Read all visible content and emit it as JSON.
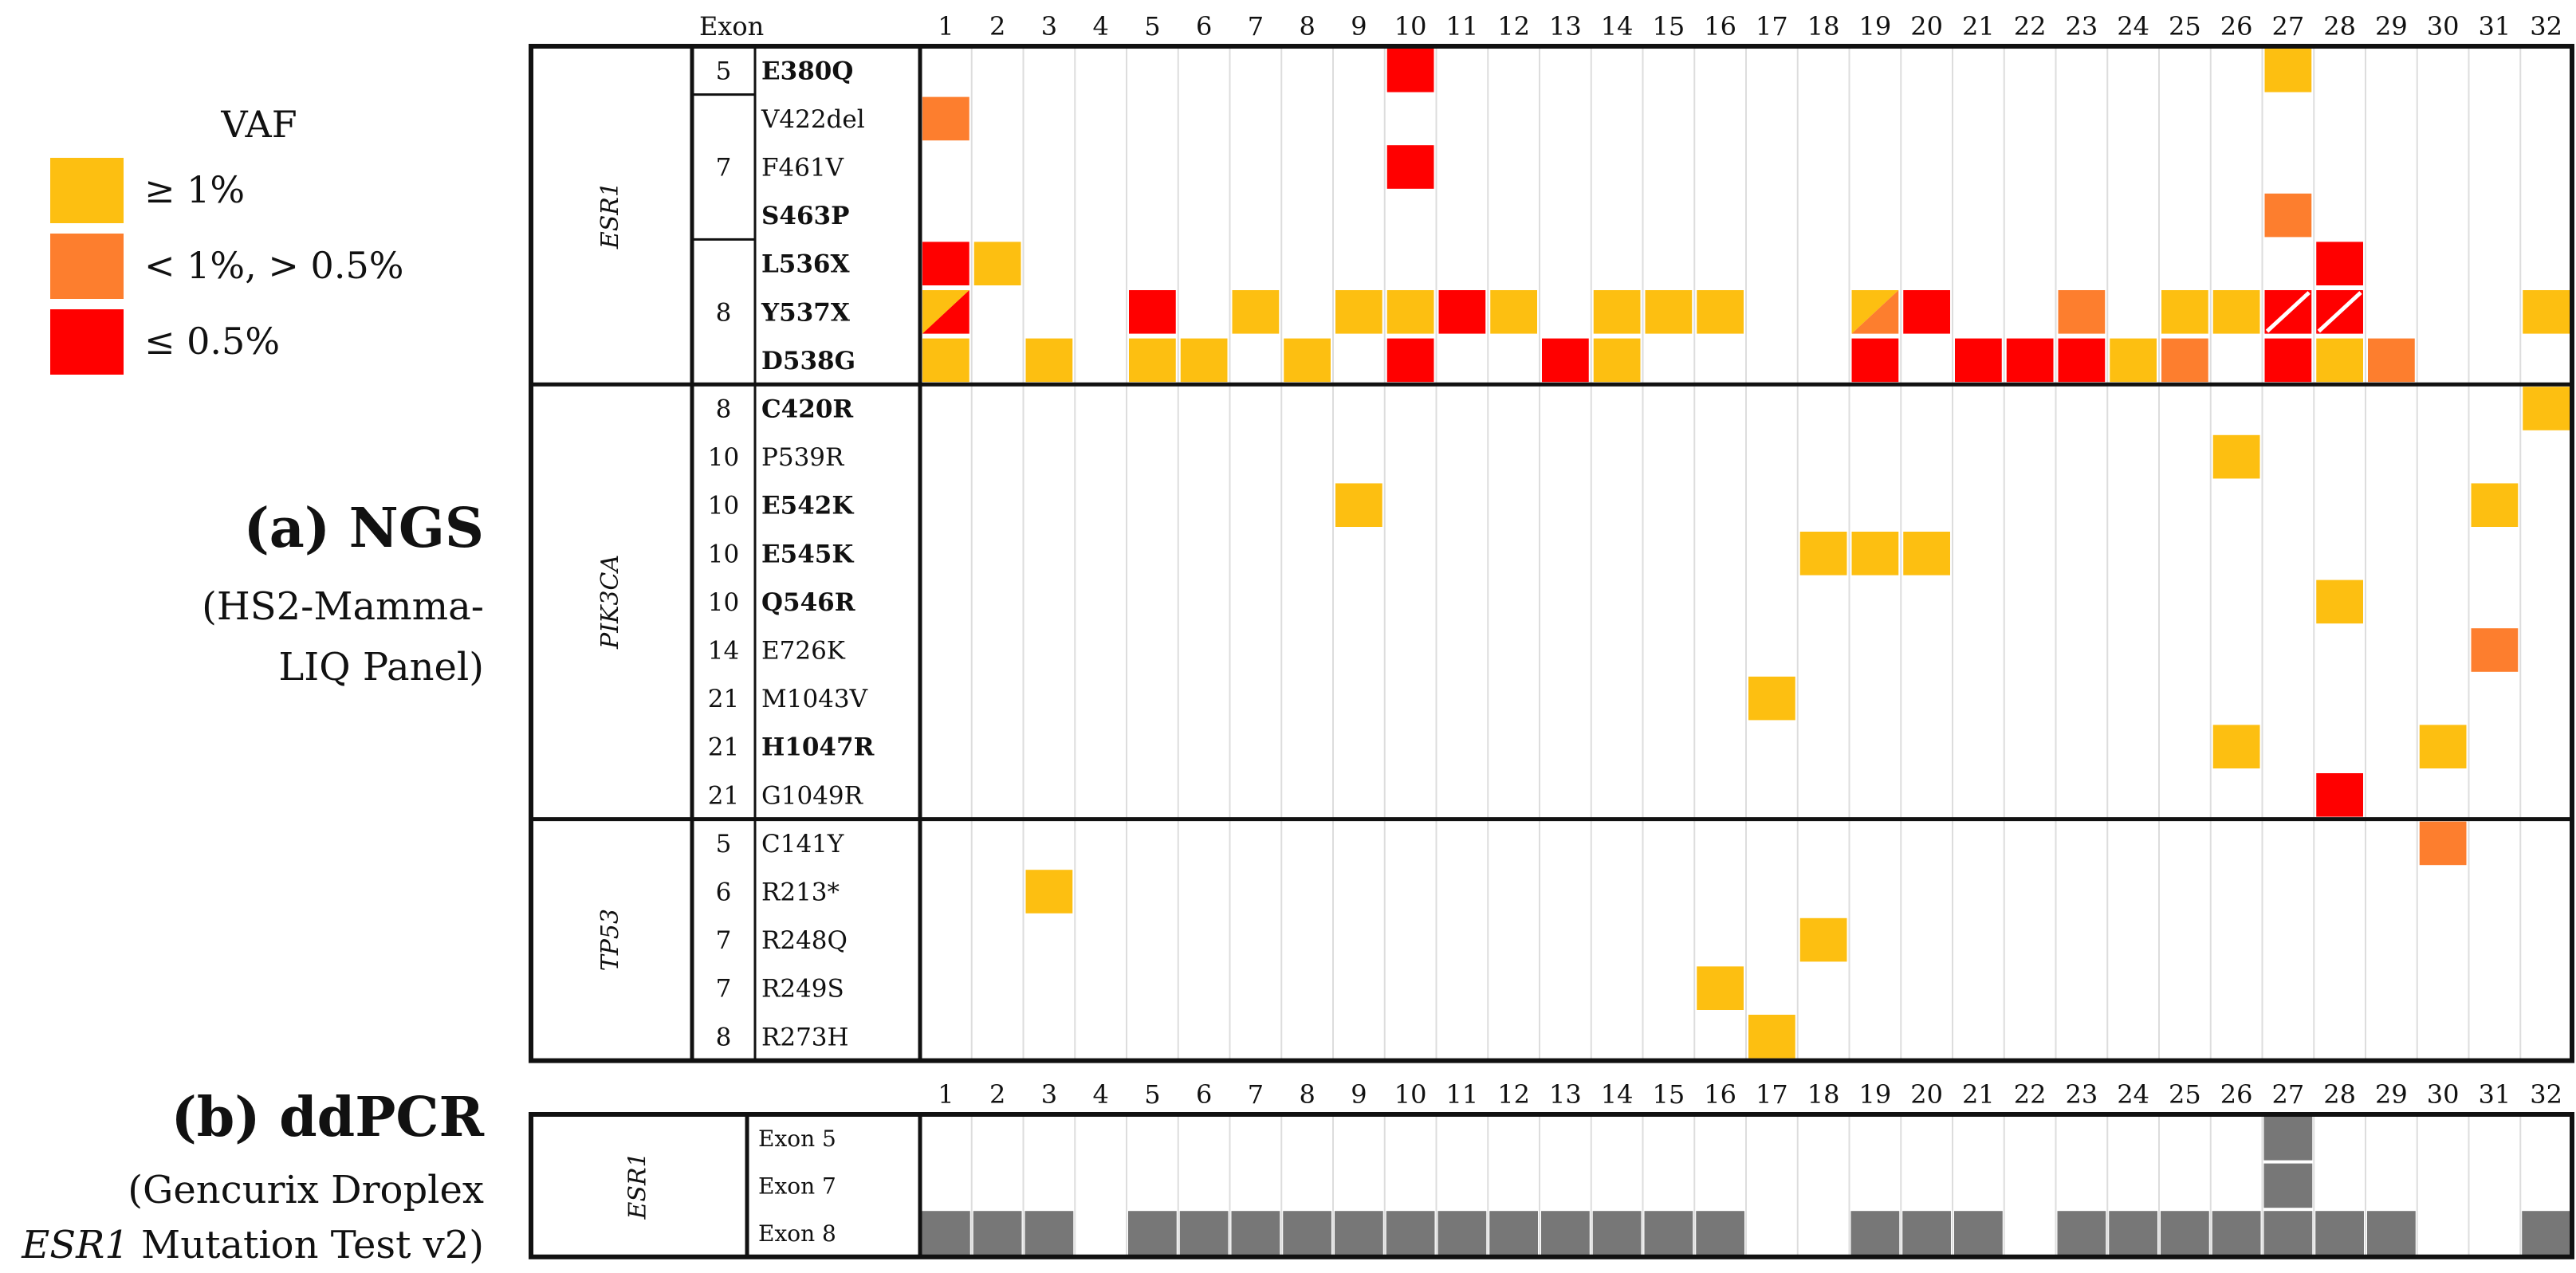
{
  "chart_data": {
    "type": "heatmap",
    "title": "",
    "columns_header": "Exon",
    "columns": [
      "1",
      "2",
      "3",
      "4",
      "5",
      "6",
      "7",
      "8",
      "9",
      "10",
      "11",
      "12",
      "13",
      "14",
      "15",
      "16",
      "17",
      "18",
      "19",
      "20",
      "21",
      "22",
      "23",
      "24",
      "25",
      "26",
      "27",
      "28",
      "29",
      "30",
      "31",
      "32"
    ],
    "legend": {
      "title": "VAF",
      "items": [
        {
          "key": "h",
          "label": "≥ 1%",
          "color": "#FDBF11"
        },
        {
          "key": "m",
          "label": "< 1%, > 0.5%",
          "color": "#FD7E2E"
        },
        {
          "key": "l",
          "label": "≤ 0.5%",
          "color": "#FF0000"
        }
      ]
    },
    "panels": [
      {
        "id": "ngs",
        "label_bold": "(a) NGS",
        "label_lines": [
          "(HS2-Mamma-",
          "LIQ Panel)"
        ],
        "genes": [
          {
            "name": "ESR1",
            "exon_groups": [
              {
                "exon": "5",
                "rows": 1
              },
              {
                "exon": "7",
                "rows": 3
              },
              {
                "exon": "8",
                "rows": 3
              }
            ],
            "rows": [
              {
                "mutation": "E380Q",
                "bold": true,
                "cells": {
                  "10": "l",
                  "27": "h"
                }
              },
              {
                "mutation": "V422del",
                "bold": false,
                "cells": {
                  "1": "m"
                }
              },
              {
                "mutation": "F461V",
                "bold": false,
                "cells": {
                  "10": "l"
                }
              },
              {
                "mutation": "S463P",
                "bold": true,
                "cells": {
                  "27": "m"
                }
              },
              {
                "mutation": "L536X",
                "bold": true,
                "cells": {
                  "1": "l",
                  "2": "h",
                  "28": "l"
                }
              },
              {
                "mutation": "Y537X",
                "bold": true,
                "cells": {
                  "1": "h/l",
                  "5": "l",
                  "7": "h",
                  "9": "h",
                  "10": "h",
                  "11": "l",
                  "12": "h",
                  "14": "h",
                  "15": "h",
                  "16": "h",
                  "19": "h/m",
                  "20": "l",
                  "23": "m",
                  "25": "h",
                  "26": "h",
                  "27": "l/l",
                  "28": "l/l",
                  "32": "h"
                }
              },
              {
                "mutation": "D538G",
                "bold": true,
                "cells": {
                  "1": "h",
                  "3": "h",
                  "5": "h",
                  "6": "h",
                  "8": "h",
                  "10": "l",
                  "13": "l",
                  "14": "h",
                  "19": "l",
                  "21": "l",
                  "22": "l",
                  "23": "l",
                  "24": "h",
                  "25": "m",
                  "27": "l",
                  "28": "h",
                  "29": "m"
                }
              }
            ]
          },
          {
            "name": "PIK3CA",
            "rows": [
              {
                "exon": "8",
                "mutation": "C420R",
                "bold": true,
                "cells": {
                  "32": "h"
                }
              },
              {
                "exon": "10",
                "mutation": "P539R",
                "bold": false,
                "cells": {
                  "26": "h"
                }
              },
              {
                "exon": "10",
                "mutation": "E542K",
                "bold": true,
                "cells": {
                  "9": "h",
                  "31": "h"
                }
              },
              {
                "exon": "10",
                "mutation": "E545K",
                "bold": true,
                "cells": {
                  "18": "h",
                  "19": "h",
                  "20": "h"
                }
              },
              {
                "exon": "10",
                "mutation": "Q546R",
                "bold": true,
                "cells": {
                  "28": "h"
                }
              },
              {
                "exon": "14",
                "mutation": "E726K",
                "bold": false,
                "cells": {
                  "31": "m"
                }
              },
              {
                "exon": "21",
                "mutation": "M1043V",
                "bold": false,
                "cells": {
                  "17": "h"
                }
              },
              {
                "exon": "21",
                "mutation": "H1047R",
                "bold": true,
                "cells": {
                  "26": "h",
                  "30": "h"
                }
              },
              {
                "exon": "21",
                "mutation": "G1049R",
                "bold": false,
                "cells": {
                  "28": "l"
                }
              }
            ]
          },
          {
            "name": "TP53",
            "rows": [
              {
                "exon": "5",
                "mutation": "C141Y",
                "bold": false,
                "cells": {
                  "30": "m"
                }
              },
              {
                "exon": "6",
                "mutation": "R213*",
                "bold": false,
                "cells": {
                  "3": "h"
                }
              },
              {
                "exon": "7",
                "mutation": "R248Q",
                "bold": false,
                "cells": {
                  "18": "h"
                }
              },
              {
                "exon": "7",
                "mutation": "R249S",
                "bold": false,
                "cells": {
                  "16": "h"
                }
              },
              {
                "exon": "8",
                "mutation": "R273H",
                "bold": false,
                "cells": {
                  "17": "h"
                }
              }
            ]
          }
        ]
      },
      {
        "id": "ddpcr",
        "label_bold": "(b) ddPCR",
        "label_lines": [
          "(Gencurix Droplex"
        ],
        "label_italic": "ESR1",
        "label_tail": " Mutation Test v2)",
        "gene": "ESR1",
        "detected_color": "#777777",
        "rows": [
          {
            "name": "Exon 5",
            "detected": [
              "27"
            ]
          },
          {
            "name": "Exon 7",
            "detected": [
              "27"
            ]
          },
          {
            "name": "Exon 8",
            "detected": [
              "1",
              "2",
              "3",
              "5",
              "6",
              "7",
              "8",
              "9",
              "10",
              "11",
              "12",
              "13",
              "14",
              "15",
              "16",
              "19",
              "20",
              "21",
              "23",
              "24",
              "25",
              "26",
              "27",
              "28",
              "29",
              "32"
            ]
          }
        ]
      }
    ]
  }
}
